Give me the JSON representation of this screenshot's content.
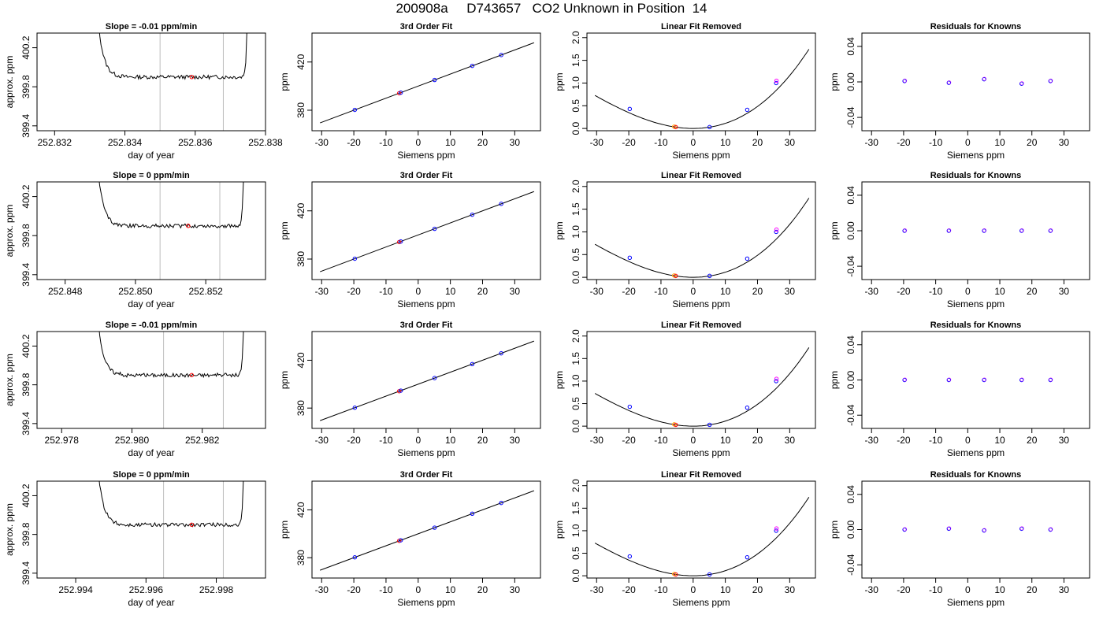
{
  "title": "200908a     D743657   CO2 Unknown in Position  14",
  "xlabel_time": "day of year",
  "ylabel_time": "approx. ppm",
  "xlabel_siemens": "Siemens ppm",
  "ylabel_ppm": "ppm",
  "colors": {
    "trace": "#000000",
    "grid": "#bebebe",
    "point_blue": "#0000ff",
    "point_red": "#ff0000",
    "point_magenta": "#ff00ff",
    "point_orange": "#ffa500"
  },
  "chart_data": [
    {
      "type": "line",
      "row": 0,
      "panel": "time",
      "title": "Slope =  -0.01  ppm/min",
      "xlabel": "day of year",
      "ylabel": "approx. ppm",
      "xlim": [
        252.8315,
        252.838
      ],
      "ylim": [
        399.35,
        400.35
      ],
      "xticks": [
        "252.832",
        "252.834",
        "252.836",
        "252.838"
      ],
      "yticks": [
        "399.4",
        "399.8",
        "400.2"
      ],
      "vlines": [
        252.835,
        252.8368
      ],
      "step_start": 252.8331,
      "step_end": 252.8375,
      "plateau": 399.9,
      "marker_x": 252.8359
    },
    {
      "type": "scatter",
      "row": 0,
      "panel": "fit",
      "title": "3rd Order Fit",
      "xlabel": "Siemens ppm",
      "ylabel": "ppm",
      "xlim": [
        -33,
        38
      ],
      "ylim": [
        363,
        444
      ],
      "xticks": [
        "-30",
        "-20",
        "-10",
        "0",
        "10",
        "20",
        "30"
      ],
      "yticks": [
        "380",
        "420"
      ],
      "x": [
        -19.7,
        -5.9,
        -5.4,
        5.1,
        16.8,
        25.8
      ],
      "y": [
        380.3,
        394.1,
        394.6,
        405.1,
        416.8,
        425.8
      ]
    },
    {
      "type": "scatter",
      "row": 0,
      "panel": "linear",
      "title": "Linear Fit Removed",
      "xlabel": "Siemens ppm",
      "ylabel": "ppm",
      "xlim": [
        -33,
        38
      ],
      "ylim": [
        -0.05,
        2.1
      ],
      "xticks": [
        "-30",
        "-20",
        "-10",
        "0",
        "10",
        "20",
        "30"
      ],
      "yticks": [
        "0.0",
        "0.5",
        "1.0",
        "1.5",
        "2.0"
      ],
      "x": [
        -19.7,
        -5.9,
        -5.4,
        5.1,
        16.8,
        25.8
      ],
      "y": [
        0.43,
        0.04,
        0.03,
        0.03,
        0.41,
        1.0
      ]
    },
    {
      "type": "scatter",
      "row": 0,
      "panel": "resid",
      "title": "Residuals for Knowns",
      "xlabel": "Siemens ppm",
      "ylabel": "ppm",
      "xlim": [
        -33,
        38
      ],
      "ylim": [
        -0.055,
        0.055
      ],
      "xticks": [
        "-30",
        "-20",
        "-10",
        "0",
        "10",
        "20",
        "30"
      ],
      "yticks": [
        "-0.04",
        "0.00",
        "0.04"
      ],
      "x": [
        -19.7,
        -5.9,
        5.1,
        16.8,
        25.8
      ],
      "y": [
        0.001,
        -0.001,
        0.003,
        -0.002,
        0.001
      ]
    },
    {
      "type": "line",
      "row": 1,
      "panel": "time",
      "title": "Slope =  0  ppm/min",
      "xlabel": "day of year",
      "ylabel": "approx. ppm",
      "xlim": [
        252.8472,
        252.8537
      ],
      "ylim": [
        399.35,
        400.35
      ],
      "xticks": [
        "252.848",
        "252.850",
        "252.852"
      ],
      "yticks": [
        "399.4",
        "399.8",
        "400.2"
      ],
      "vlines": [
        252.8507,
        252.8524
      ],
      "step_start": 252.8488,
      "step_end": 252.8531,
      "plateau": 399.9,
      "marker_x": 252.8515
    },
    {
      "type": "scatter",
      "row": 1,
      "panel": "fit",
      "title": "3rd Order Fit",
      "xlabel": "Siemens ppm",
      "ylabel": "ppm",
      "xlim": [
        -33,
        38
      ],
      "ylim": [
        363,
        444
      ],
      "xticks": [
        "-30",
        "-20",
        "-10",
        "0",
        "10",
        "20",
        "30"
      ],
      "yticks": [
        "380",
        "420"
      ],
      "x": [
        -19.7,
        -5.9,
        -5.4,
        5.1,
        16.8,
        25.8
      ],
      "y": [
        380.3,
        394.1,
        394.6,
        405.1,
        416.8,
        425.8
      ]
    },
    {
      "type": "scatter",
      "row": 1,
      "panel": "linear",
      "title": "Linear Fit Removed",
      "xlabel": "Siemens ppm",
      "ylabel": "ppm",
      "xlim": [
        -33,
        38
      ],
      "ylim": [
        -0.05,
        2.1
      ],
      "xticks": [
        "-30",
        "-20",
        "-10",
        "0",
        "10",
        "20",
        "30"
      ],
      "yticks": [
        "0.0",
        "0.5",
        "1.0",
        "1.5",
        "2.0"
      ],
      "x": [
        -19.7,
        -5.9,
        -5.4,
        5.1,
        16.8,
        25.8
      ],
      "y": [
        0.43,
        0.04,
        0.03,
        0.03,
        0.41,
        1.0
      ]
    },
    {
      "type": "scatter",
      "row": 1,
      "panel": "resid",
      "title": "Residuals for Knowns",
      "xlabel": "Siemens ppm",
      "ylabel": "ppm",
      "xlim": [
        -33,
        38
      ],
      "ylim": [
        -0.055,
        0.055
      ],
      "xticks": [
        "-30",
        "-20",
        "-10",
        "0",
        "10",
        "20",
        "30"
      ],
      "yticks": [
        "-0.04",
        "0.00",
        "0.04"
      ],
      "x": [
        -19.7,
        -5.9,
        5.1,
        16.8,
        25.8
      ],
      "y": [
        0.0,
        0.0,
        0.0,
        0.0,
        0.0
      ]
    },
    {
      "type": "line",
      "row": 2,
      "panel": "time",
      "title": "Slope =  -0.01  ppm/min",
      "xlabel": "day of year",
      "ylabel": "approx. ppm",
      "xlim": [
        252.9773,
        252.9838
      ],
      "ylim": [
        399.35,
        400.35
      ],
      "xticks": [
        "252.978",
        "252.980",
        "252.982"
      ],
      "yticks": [
        "399.4",
        "399.8",
        "400.2"
      ],
      "vlines": [
        252.9809,
        252.9826
      ],
      "step_start": 252.9789,
      "step_end": 252.9832,
      "plateau": 399.9,
      "marker_x": 252.9817
    },
    {
      "type": "scatter",
      "row": 2,
      "panel": "fit",
      "title": "3rd Order Fit",
      "xlabel": "Siemens ppm",
      "ylabel": "ppm",
      "xlim": [
        -33,
        38
      ],
      "ylim": [
        363,
        444
      ],
      "xticks": [
        "-30",
        "-20",
        "-10",
        "0",
        "10",
        "20",
        "30"
      ],
      "yticks": [
        "380",
        "420"
      ],
      "x": [
        -19.7,
        -5.9,
        -5.4,
        5.1,
        16.8,
        25.8
      ],
      "y": [
        380.3,
        394.1,
        394.6,
        405.1,
        416.8,
        425.8
      ]
    },
    {
      "type": "scatter",
      "row": 2,
      "panel": "linear",
      "title": "Linear Fit Removed",
      "xlabel": "Siemens ppm",
      "ylabel": "ppm",
      "xlim": [
        -33,
        38
      ],
      "ylim": [
        -0.05,
        2.1
      ],
      "xticks": [
        "-30",
        "-20",
        "-10",
        "0",
        "10",
        "20",
        "30"
      ],
      "yticks": [
        "0.0",
        "0.5",
        "1.0",
        "1.5",
        "2.0"
      ],
      "x": [
        -19.7,
        -5.9,
        -5.4,
        5.1,
        16.8,
        25.8
      ],
      "y": [
        0.43,
        0.04,
        0.03,
        0.03,
        0.41,
        1.0
      ]
    },
    {
      "type": "scatter",
      "row": 2,
      "panel": "resid",
      "title": "Residuals for Knowns",
      "xlabel": "Siemens ppm",
      "ylabel": "ppm",
      "xlim": [
        -33,
        38
      ],
      "ylim": [
        -0.055,
        0.055
      ],
      "xticks": [
        "-30",
        "-20",
        "-10",
        "0",
        "10",
        "20",
        "30"
      ],
      "yticks": [
        "-0.04",
        "0.00",
        "0.04"
      ],
      "x": [
        -19.7,
        -5.9,
        5.1,
        16.8,
        25.8
      ],
      "y": [
        0.0,
        0.0,
        0.0,
        0.0,
        0.0
      ]
    },
    {
      "type": "line",
      "row": 3,
      "panel": "time",
      "title": "Slope =  0  ppm/min",
      "xlabel": "day of year",
      "ylabel": "approx. ppm",
      "xlim": [
        252.9929,
        252.9994
      ],
      "ylim": [
        399.35,
        400.35
      ],
      "xticks": [
        "252.994",
        "252.996",
        "252.998"
      ],
      "yticks": [
        "399.4",
        "399.8",
        "400.2"
      ],
      "vlines": [
        252.9965,
        252.9982
      ],
      "step_start": 252.9945,
      "step_end": 252.9988,
      "plateau": 399.9,
      "marker_x": 252.9973
    },
    {
      "type": "scatter",
      "row": 3,
      "panel": "fit",
      "title": "3rd Order Fit",
      "xlabel": "Siemens ppm",
      "ylabel": "ppm",
      "xlim": [
        -33,
        38
      ],
      "ylim": [
        363,
        444
      ],
      "xticks": [
        "-30",
        "-20",
        "-10",
        "0",
        "10",
        "20",
        "30"
      ],
      "yticks": [
        "380",
        "420"
      ],
      "x": [
        -19.7,
        -5.9,
        -5.4,
        5.1,
        16.8,
        25.8
      ],
      "y": [
        380.3,
        394.1,
        394.6,
        405.1,
        416.8,
        425.8
      ]
    },
    {
      "type": "scatter",
      "row": 3,
      "panel": "linear",
      "title": "Linear Fit Removed",
      "xlabel": "Siemens ppm",
      "ylabel": "ppm",
      "xlim": [
        -33,
        38
      ],
      "ylim": [
        -0.05,
        2.1
      ],
      "xticks": [
        "-30",
        "-20",
        "-10",
        "0",
        "10",
        "20",
        "30"
      ],
      "yticks": [
        "0.0",
        "0.5",
        "1.0",
        "1.5",
        "2.0"
      ],
      "x": [
        -19.7,
        -5.9,
        -5.4,
        5.1,
        16.8,
        25.8
      ],
      "y": [
        0.43,
        0.04,
        0.03,
        0.03,
        0.41,
        1.0
      ]
    },
    {
      "type": "scatter",
      "row": 3,
      "panel": "resid",
      "title": "Residuals for Knowns",
      "xlabel": "Siemens ppm",
      "ylabel": "ppm",
      "xlim": [
        -33,
        38
      ],
      "ylim": [
        -0.055,
        0.055
      ],
      "xticks": [
        "-30",
        "-20",
        "-10",
        "0",
        "10",
        "20",
        "30"
      ],
      "yticks": [
        "-0.04",
        "0.00",
        "0.04"
      ],
      "x": [
        -19.7,
        -5.9,
        5.1,
        16.8,
        25.8
      ],
      "y": [
        0.0,
        0.001,
        -0.001,
        0.001,
        0.0
      ]
    }
  ]
}
